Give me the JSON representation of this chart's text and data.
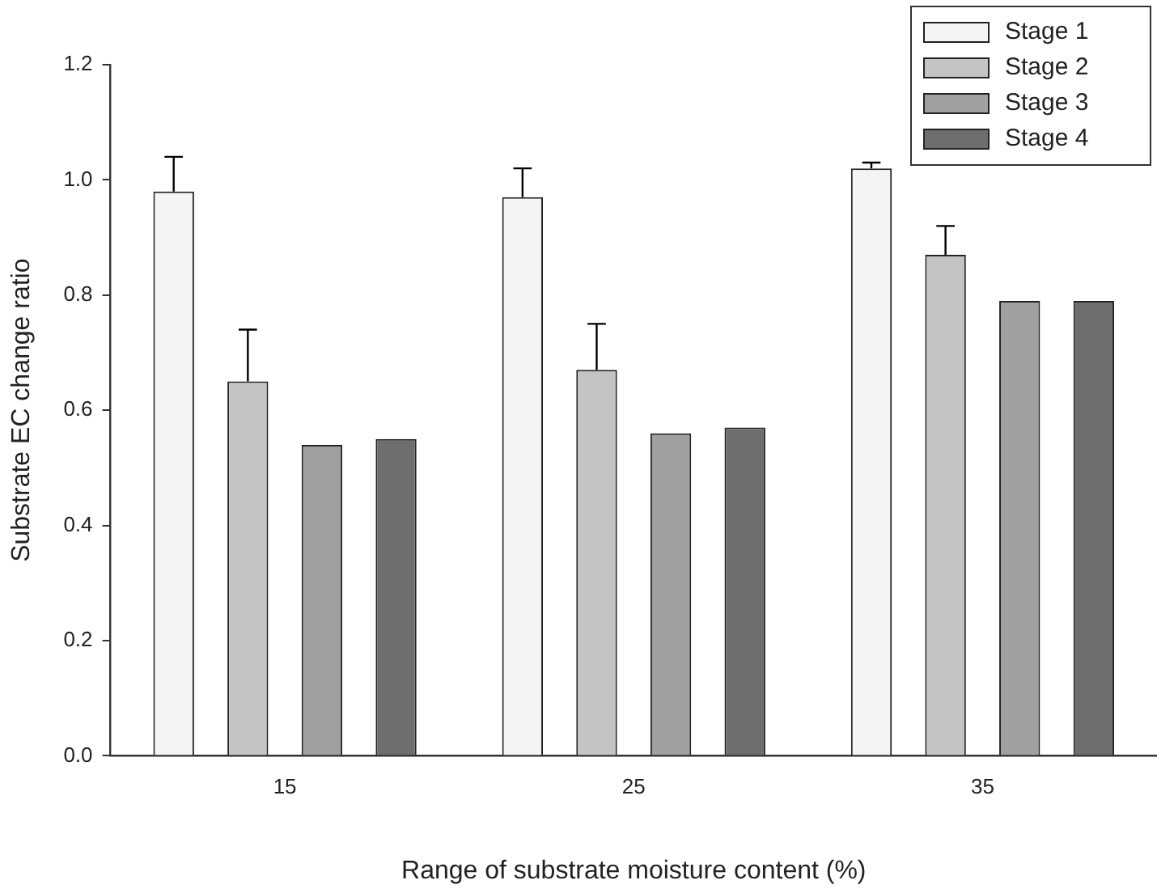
{
  "chart_data": {
    "type": "bar",
    "xlabel": "Range of substrate moisture content (%)",
    "ylabel": "Substrate EC change ratio",
    "categories": [
      "15",
      "25",
      "35"
    ],
    "series": [
      {
        "name": "Stage 1",
        "color": "#f4f4f4",
        "values": [
          0.98,
          0.97,
          1.02
        ],
        "errors": [
          [
            0.98,
            1.04
          ],
          [
            0.97,
            1.02
          ],
          [
            1.02,
            1.03
          ]
        ]
      },
      {
        "name": "Stage 2",
        "color": "#c4c4c4",
        "values": [
          0.65,
          0.67,
          0.87
        ],
        "errors": [
          [
            0.65,
            0.74
          ],
          [
            0.67,
            0.75
          ],
          [
            0.87,
            0.92
          ]
        ]
      },
      {
        "name": "Stage 3",
        "color": "#a0a0a0",
        "values": [
          0.54,
          0.56,
          0.79
        ]
      },
      {
        "name": "Stage 4",
        "color": "#6e6e6e",
        "values": [
          0.55,
          0.57,
          0.79
        ]
      }
    ],
    "ylim": [
      0,
      1.2
    ],
    "yticks": [
      {
        "value": 0,
        "label": "0.0"
      },
      {
        "value": 0.2,
        "label": "0.2"
      },
      {
        "value": 0.4,
        "label": "0.4"
      },
      {
        "value": 0.6,
        "label": "0.6"
      },
      {
        "value": 0.8,
        "label": "0.8"
      },
      {
        "value": 1,
        "label": "1.0"
      },
      {
        "value": 1.2,
        "label": "1.2"
      }
    ],
    "legend": "top right"
  }
}
